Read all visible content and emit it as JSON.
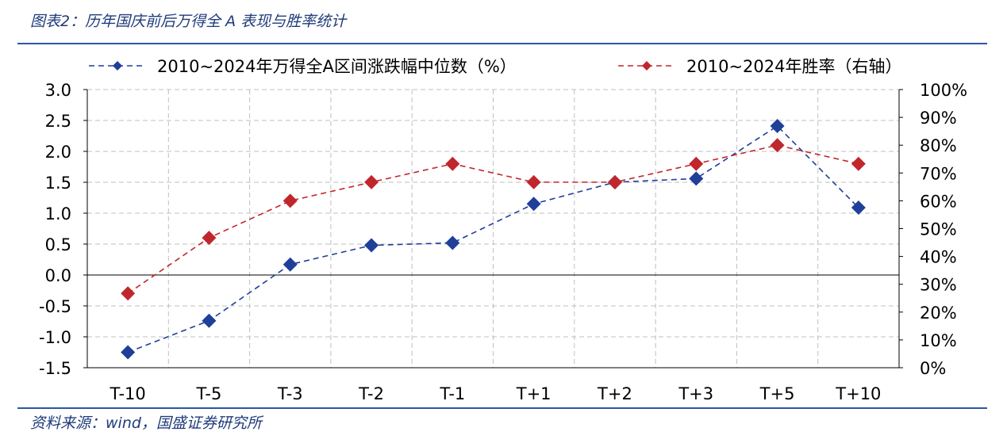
{
  "header": {
    "title": "图表2：历年国庆前后万得全 A 表现与胜率统计"
  },
  "footer": {
    "source": "资料来源：wind，国盛证券研究所"
  },
  "colors": {
    "blue": "#1f3f99",
    "red": "#c0272d",
    "rule": "#2b57a8",
    "grid": "#bfbfbf"
  },
  "chart_data": {
    "type": "line",
    "title": "",
    "xlabel": "",
    "ylabel": "",
    "categories": [
      "T-10",
      "T-5",
      "T-3",
      "T-2",
      "T-1",
      "T+1",
      "T+2",
      "T+3",
      "T+5",
      "T+10"
    ],
    "ylim": [
      -1.5,
      3.0
    ],
    "yticks": [
      "3.0",
      "2.5",
      "2.0",
      "1.5",
      "1.0",
      "0.5",
      "0.0",
      "-0.5",
      "-1.0",
      "-1.5"
    ],
    "y2lim": [
      0,
      100
    ],
    "y2ticks": [
      "100%",
      "90%",
      "80%",
      "70%",
      "60%",
      "50%",
      "40%",
      "30%",
      "20%",
      "10%",
      "0%"
    ],
    "grid": true,
    "legend_position": "top",
    "series": [
      {
        "name": "2010~2024年万得全A区间涨跌幅中位数（%）",
        "axis": "left",
        "color": "#1f3f99",
        "values": [
          -1.25,
          -0.74,
          0.17,
          0.48,
          0.52,
          1.15,
          1.5,
          1.56,
          2.41,
          1.09
        ]
      },
      {
        "name": "2010~2024年胜率（右轴）",
        "axis": "right",
        "color": "#c0272d",
        "values": [
          26.7,
          46.7,
          60.0,
          66.7,
          73.3,
          66.7,
          66.7,
          73.3,
          80.0,
          73.3
        ]
      }
    ]
  }
}
